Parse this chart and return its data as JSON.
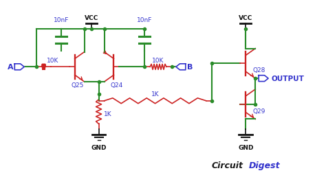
{
  "bg_color": "#ffffff",
  "line_color_green": "#2a8c2a",
  "line_color_red": "#cc2222",
  "line_color_blue": "#3333cc",
  "line_color_dark": "#111111",
  "vcc_label": "VCC",
  "gnd_label": "GND",
  "labels": {
    "A": "A",
    "B": "B",
    "Q24": "Q24",
    "Q25": "Q25",
    "Q28": "Q28",
    "Q29": "Q29",
    "cap1": "10nF",
    "cap2": "10nF",
    "r1": "10K",
    "r2": "10K",
    "r3": "1K",
    "r4": "1K",
    "output": "OUTPUT"
  }
}
